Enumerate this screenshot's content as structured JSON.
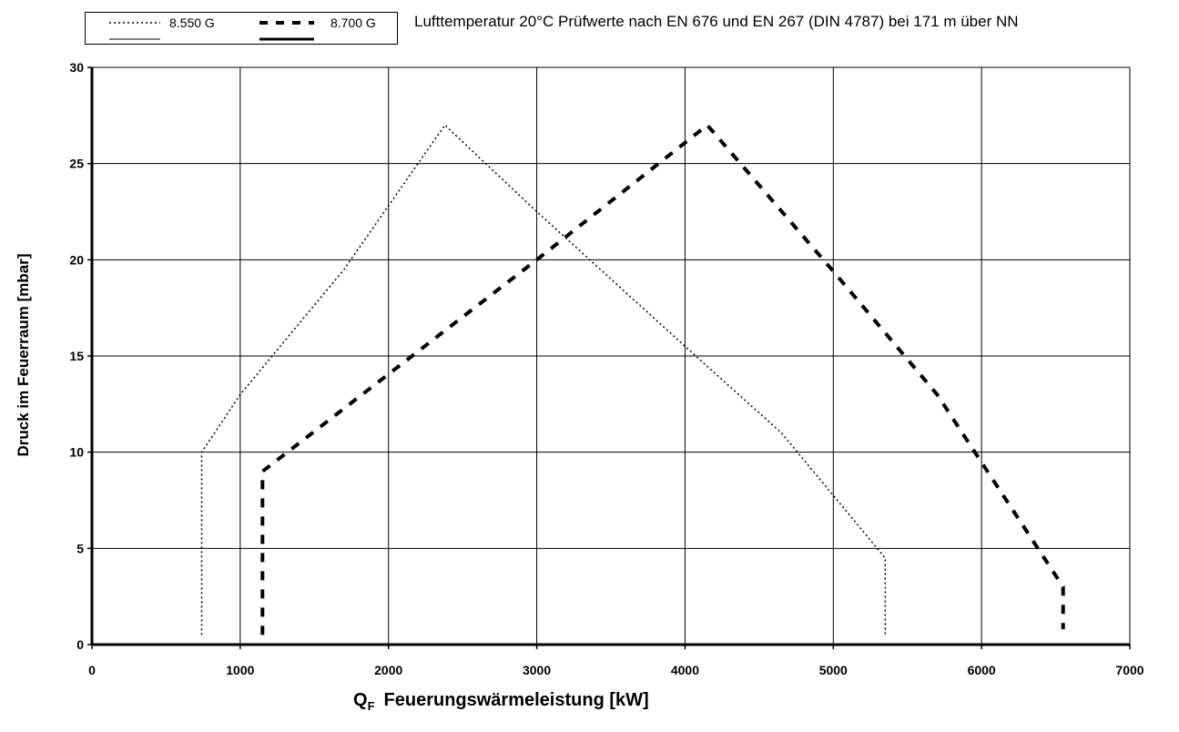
{
  "chart_data": {
    "type": "line",
    "title": "",
    "note": "Lufttemperatur 20°C Prüfwerte nach EN 676 und EN 267 (DIN 4787) bei 171 m über NN",
    "xlabel": {
      "main": "Q",
      "subscript": "F",
      "rest": "Feuerungswärmeleistung [kW]"
    },
    "ylabel": "Druck im Feuerraum [mbar]",
    "xlim": [
      0,
      7000
    ],
    "ylim": [
      0,
      30
    ],
    "xticks": [
      0,
      1000,
      2000,
      3000,
      4000,
      5000,
      6000,
      7000
    ],
    "yticks": [
      0,
      5,
      10,
      15,
      20,
      25,
      30
    ],
    "grid": true,
    "legend_position": "top-left",
    "series": [
      {
        "name": "8.550 G",
        "style": "dotted",
        "color": "#000000",
        "points": [
          [
            740,
            0.5
          ],
          [
            740,
            10
          ],
          [
            1000,
            13
          ],
          [
            1700,
            19.5
          ],
          [
            2380,
            27
          ],
          [
            3000,
            22.5
          ],
          [
            4000,
            15.5
          ],
          [
            4650,
            11
          ],
          [
            5350,
            4.5
          ],
          [
            5350,
            0.5
          ]
        ]
      },
      {
        "name": "8.700 G",
        "style": "dashed",
        "color": "#000000",
        "points": [
          [
            1150,
            0.5
          ],
          [
            1150,
            9
          ],
          [
            3000,
            20
          ],
          [
            4150,
            27
          ],
          [
            5000,
            19.4
          ],
          [
            5700,
            13
          ],
          [
            6550,
            3
          ],
          [
            6550,
            0.8
          ]
        ]
      }
    ]
  }
}
